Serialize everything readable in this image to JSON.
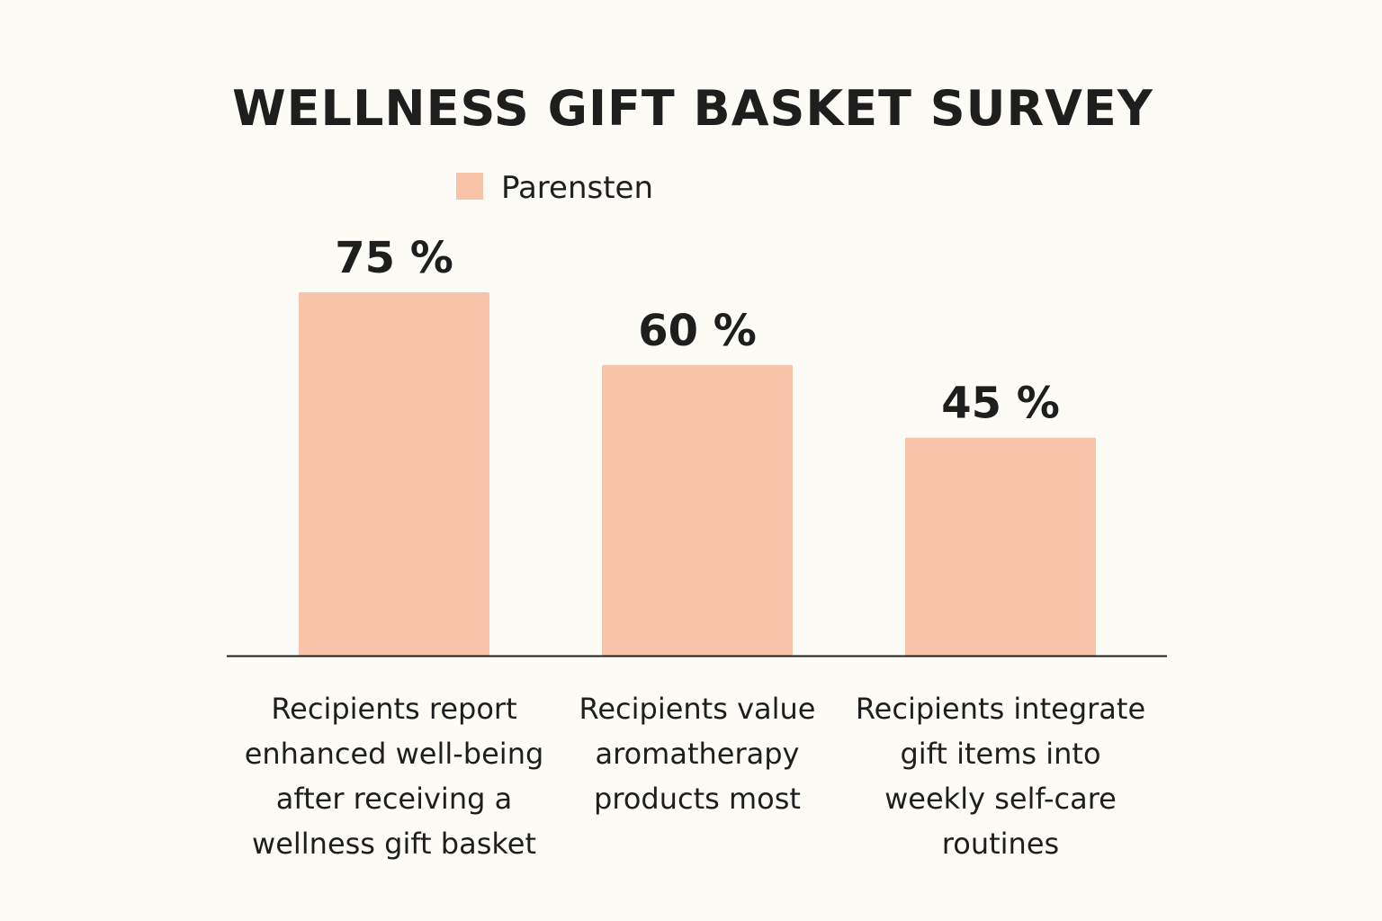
{
  "chart_data": {
    "type": "bar",
    "title": "WELLNESS GIFT BASKET SURVEY",
    "categories": [
      [
        "Recipients report",
        "enhanced well-being",
        "after receiving a",
        "wellness gift basket"
      ],
      [
        "Recipients value",
        "aromatherapy",
        "products most"
      ],
      [
        "Recipients integrate",
        "gift items into",
        "weekly self-care",
        "routines"
      ]
    ],
    "series": [
      {
        "name": "Parensten",
        "values": [
          75,
          60,
          45
        ],
        "color": "#F9C3AA"
      }
    ],
    "value_labels": [
      "75 %",
      "60 %",
      "45 %"
    ],
    "xlabel": "",
    "ylabel": "",
    "ylim": [
      0,
      75
    ],
    "grid": false,
    "legend": "top-center"
  }
}
